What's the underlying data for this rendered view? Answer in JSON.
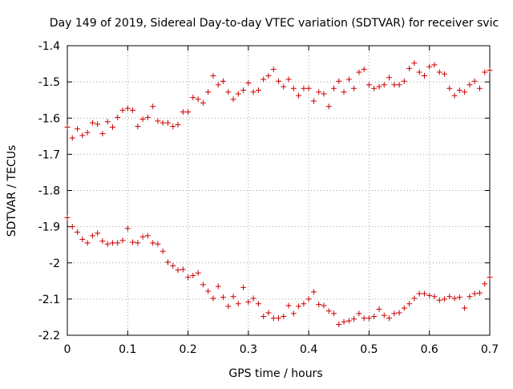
{
  "chart_data": {
    "type": "scatter",
    "title": "Day 149 of 2019, Sidereal Day-to-day VTEC variation (SDTVAR) for receiver svic",
    "xlabel": "GPS time / hours",
    "ylabel": "SDTVAR / TECUs",
    "xlim": [
      0,
      0.7
    ],
    "ylim": [
      -2.2,
      -1.4
    ],
    "xticks": [
      0,
      0.1,
      0.2,
      0.3,
      0.4,
      0.5,
      0.6,
      0.7
    ],
    "xtick_labels": [
      "0",
      "0.1",
      "0.2",
      "0.3",
      "0.4",
      "0.5",
      "0.6",
      "0.7"
    ],
    "yticks": [
      -1.4,
      -1.5,
      -1.6,
      -1.7,
      -1.8,
      -1.9,
      -2.0,
      -2.1,
      -2.2
    ],
    "ytick_labels": [
      "-1.4",
      "-1.5",
      "-1.6",
      "-1.7",
      "-1.8",
      "-1.9",
      "-2",
      "-2.1",
      "-2.2"
    ],
    "grid": true,
    "marker": "+",
    "series": [
      {
        "name": "upper",
        "color": "#cc0000",
        "x": [
          0.0,
          0.0083,
          0.0167,
          0.025,
          0.0333,
          0.0417,
          0.05,
          0.0583,
          0.0667,
          0.075,
          0.0833,
          0.0917,
          0.1,
          0.1083,
          0.1167,
          0.125,
          0.1333,
          0.1417,
          0.15,
          0.1583,
          0.1667,
          0.175,
          0.1833,
          0.1917,
          0.2,
          0.2083,
          0.2167,
          0.225,
          0.2333,
          0.2417,
          0.25,
          0.2583,
          0.2667,
          0.275,
          0.2833,
          0.2917,
          0.3,
          0.3083,
          0.3167,
          0.325,
          0.3333,
          0.3417,
          0.35,
          0.3583,
          0.3667,
          0.375,
          0.3833,
          0.3917,
          0.4,
          0.4083,
          0.4167,
          0.425,
          0.4333,
          0.4417,
          0.45,
          0.4583,
          0.4667,
          0.475,
          0.4833,
          0.4917,
          0.5,
          0.5083,
          0.5167,
          0.525,
          0.5333,
          0.5417,
          0.55,
          0.5583,
          0.5667,
          0.575,
          0.5833,
          0.5917,
          0.6,
          0.6083,
          0.6167,
          0.625,
          0.6333,
          0.6417,
          0.65,
          0.6583,
          0.6667,
          0.675,
          0.6833,
          0.6917,
          0.7
        ],
        "y": [
          -1.625,
          -1.655,
          -1.63,
          -1.648,
          -1.64,
          -1.613,
          -1.617,
          -1.643,
          -1.61,
          -1.625,
          -1.598,
          -1.578,
          -1.573,
          -1.578,
          -1.623,
          -1.603,
          -1.598,
          -1.568,
          -1.608,
          -1.613,
          -1.613,
          -1.623,
          -1.618,
          -1.583,
          -1.583,
          -1.543,
          -1.548,
          -1.558,
          -1.528,
          -1.483,
          -1.508,
          -1.498,
          -1.528,
          -1.548,
          -1.533,
          -1.523,
          -1.503,
          -1.528,
          -1.523,
          -1.493,
          -1.483,
          -1.465,
          -1.498,
          -1.513,
          -1.493,
          -1.518,
          -1.538,
          -1.518,
          -1.518,
          -1.553,
          -1.528,
          -1.533,
          -1.568,
          -1.518,
          -1.498,
          -1.528,
          -1.493,
          -1.518,
          -1.473,
          -1.465,
          -1.508,
          -1.518,
          -1.513,
          -1.508,
          -1.488,
          -1.508,
          -1.508,
          -1.498,
          -1.463,
          -1.448,
          -1.473,
          -1.483,
          -1.458,
          -1.453,
          -1.473,
          -1.478,
          -1.518,
          -1.538,
          -1.523,
          -1.528,
          -1.508,
          -1.498,
          -1.518,
          -1.473,
          -1.468
        ]
      },
      {
        "name": "lower",
        "color": "#cc0000",
        "x": [
          0.0,
          0.0083,
          0.0167,
          0.025,
          0.0333,
          0.0417,
          0.05,
          0.0583,
          0.0667,
          0.075,
          0.0833,
          0.0917,
          0.1,
          0.1083,
          0.1167,
          0.125,
          0.1333,
          0.1417,
          0.15,
          0.1583,
          0.1667,
          0.175,
          0.1833,
          0.1917,
          0.2,
          0.2083,
          0.2167,
          0.225,
          0.2333,
          0.2417,
          0.25,
          0.2583,
          0.2667,
          0.275,
          0.2833,
          0.2917,
          0.3,
          0.3083,
          0.3167,
          0.325,
          0.3333,
          0.3417,
          0.35,
          0.3583,
          0.3667,
          0.375,
          0.3833,
          0.3917,
          0.4,
          0.4083,
          0.4167,
          0.425,
          0.4333,
          0.4417,
          0.45,
          0.4583,
          0.4667,
          0.475,
          0.4833,
          0.4917,
          0.5,
          0.5083,
          0.5167,
          0.525,
          0.5333,
          0.5417,
          0.55,
          0.5583,
          0.5667,
          0.575,
          0.5833,
          0.5917,
          0.6,
          0.6083,
          0.6167,
          0.625,
          0.6333,
          0.6417,
          0.65,
          0.6583,
          0.6667,
          0.675,
          0.6833,
          0.6917,
          0.7
        ],
        "y": [
          -1.875,
          -1.9,
          -1.915,
          -1.935,
          -1.945,
          -1.925,
          -1.918,
          -1.94,
          -1.948,
          -1.945,
          -1.945,
          -1.938,
          -1.905,
          -1.943,
          -1.945,
          -1.928,
          -1.925,
          -1.945,
          -1.948,
          -1.968,
          -1.998,
          -2.008,
          -2.02,
          -2.018,
          -2.04,
          -2.035,
          -2.028,
          -2.06,
          -2.078,
          -2.098,
          -2.065,
          -2.095,
          -2.12,
          -2.093,
          -2.113,
          -2.068,
          -2.108,
          -2.098,
          -2.113,
          -2.148,
          -2.138,
          -2.153,
          -2.153,
          -2.148,
          -2.118,
          -2.14,
          -2.12,
          -2.113,
          -2.1,
          -2.08,
          -2.115,
          -2.118,
          -2.133,
          -2.14,
          -2.17,
          -2.163,
          -2.16,
          -2.155,
          -2.14,
          -2.153,
          -2.153,
          -2.148,
          -2.128,
          -2.145,
          -2.153,
          -2.14,
          -2.138,
          -2.125,
          -2.113,
          -2.098,
          -2.085,
          -2.085,
          -2.09,
          -2.093,
          -2.103,
          -2.1,
          -2.093,
          -2.098,
          -2.095,
          -2.125,
          -2.093,
          -2.085,
          -2.083,
          -2.058,
          -2.04
        ]
      }
    ]
  }
}
